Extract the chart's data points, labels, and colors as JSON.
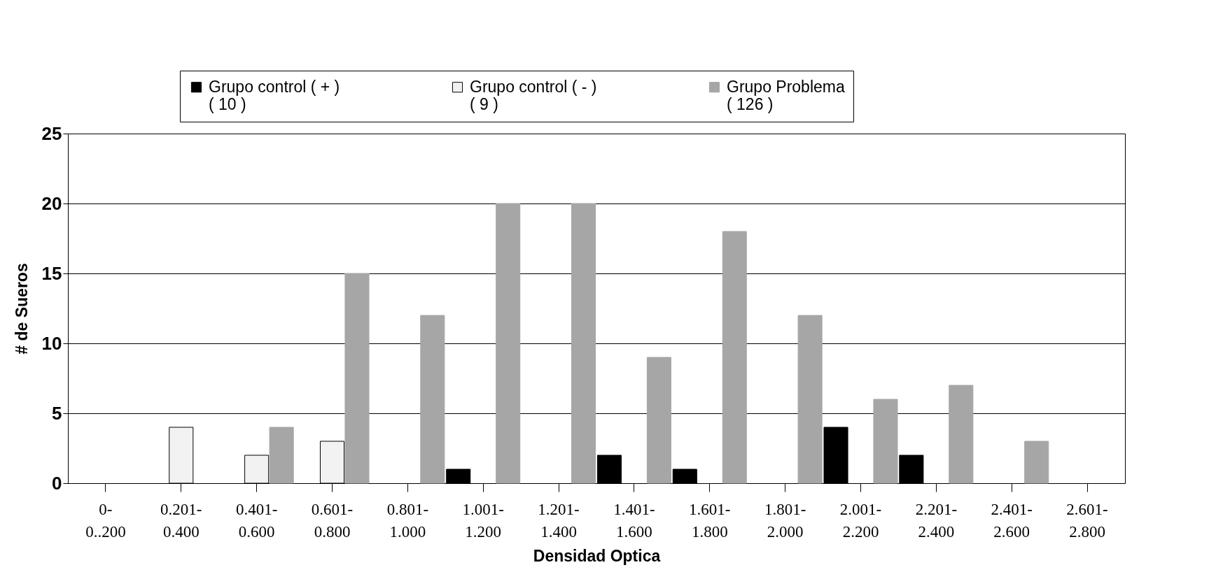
{
  "chart_data": {
    "type": "bar",
    "xlabel": "Densidad Optica",
    "ylabel": "# de Sueros",
    "categories": [
      "0- 0..200",
      "0.201- 0.400",
      "0.401- 0.600",
      "0.601- 0.800",
      "0.801- 1.000",
      "1.001- 1.200",
      "1.201- 1.400",
      "1.401- 1.600",
      "1.601- 1.800",
      "1.801- 2.000",
      "2.001- 2.200",
      "2.201- 2.400",
      "2.401- 2.600",
      "2.601- 2.800"
    ],
    "series": [
      {
        "name": "Grupo control  ( + )\n( 10  )",
        "color": "#000000",
        "values": [
          null,
          null,
          null,
          null,
          null,
          1,
          null,
          2,
          1,
          null,
          4,
          2,
          null,
          null
        ]
      },
      {
        "name": "Grupo control  ( - )\n( 9 )",
        "color": "#f2f2f2",
        "values": [
          null,
          4,
          2,
          3,
          null,
          null,
          null,
          null,
          null,
          null,
          null,
          null,
          null,
          null
        ]
      },
      {
        "name": "Grupo Problema\n( 126 )",
        "color": "#a6a6a6",
        "values": [
          null,
          null,
          4,
          15,
          12,
          20,
          20,
          9,
          18,
          12,
          6,
          7,
          3,
          null
        ]
      }
    ],
    "ylim": [
      0,
      25
    ],
    "yticks": [
      0,
      5,
      10,
      15,
      20,
      25
    ],
    "grid": "y",
    "legend": "top"
  }
}
